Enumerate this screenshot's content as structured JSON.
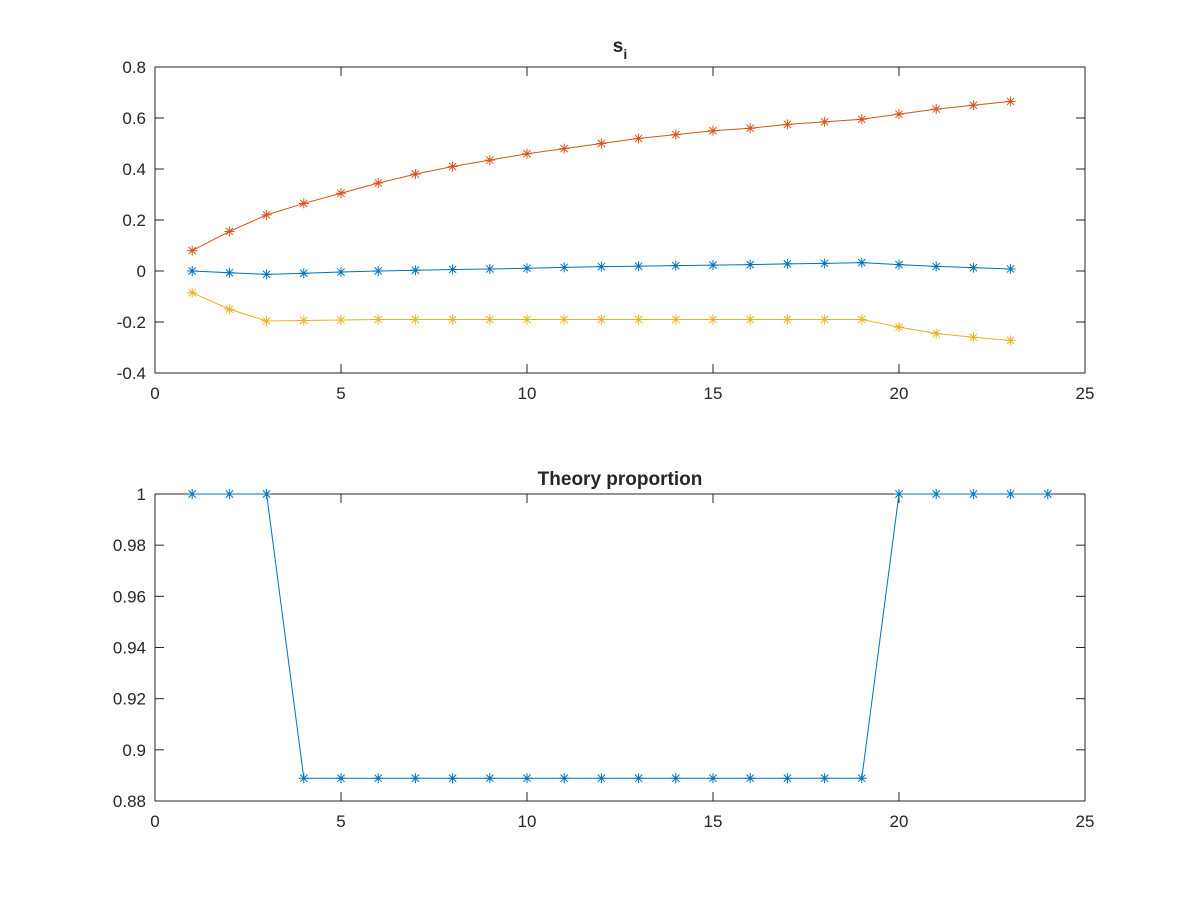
{
  "chart_data": [
    {
      "type": "line",
      "title": "s",
      "title_subscript": "i",
      "xlabel": "",
      "ylabel": "",
      "xlim": [
        0,
        25
      ],
      "ylim": [
        -0.4,
        0.8
      ],
      "xticks": [
        0,
        5,
        10,
        15,
        20,
        25
      ],
      "xtick_labels": [
        "0",
        "5",
        "10",
        "15",
        "20",
        "25"
      ],
      "yticks": [
        -0.4,
        -0.2,
        0,
        0.2,
        0.4,
        0.6,
        0.8
      ],
      "ytick_labels": [
        "-0.4",
        "-0.2",
        "0",
        "0.2",
        "0.4",
        "0.6",
        "0.8"
      ],
      "grid": false,
      "marker": "*",
      "x": [
        1,
        2,
        3,
        4,
        5,
        6,
        7,
        8,
        9,
        10,
        11,
        12,
        13,
        14,
        15,
        16,
        17,
        18,
        19,
        20,
        21,
        22,
        23
      ],
      "series": [
        {
          "color": "#0072BD",
          "values": [
            0.0,
            -0.007,
            -0.013,
            -0.009,
            -0.004,
            0.0,
            0.003,
            0.006,
            0.008,
            0.011,
            0.014,
            0.017,
            0.019,
            0.021,
            0.023,
            0.025,
            0.028,
            0.03,
            0.033,
            0.025,
            0.018,
            0.013,
            0.008
          ]
        },
        {
          "color": "#D95319",
          "values": [
            0.08,
            0.155,
            0.22,
            0.265,
            0.305,
            0.345,
            0.38,
            0.41,
            0.435,
            0.46,
            0.48,
            0.5,
            0.52,
            0.535,
            0.55,
            0.56,
            0.575,
            0.585,
            0.595,
            0.615,
            0.635,
            0.65,
            0.665
          ]
        },
        {
          "color": "#EDB120",
          "values": [
            -0.085,
            -0.15,
            -0.196,
            -0.194,
            -0.192,
            -0.19,
            -0.19,
            -0.19,
            -0.19,
            -0.19,
            -0.19,
            -0.19,
            -0.19,
            -0.19,
            -0.19,
            -0.19,
            -0.19,
            -0.19,
            -0.19,
            -0.22,
            -0.245,
            -0.26,
            -0.272
          ]
        }
      ]
    },
    {
      "type": "line",
      "title": "Theory proportion",
      "xlabel": "",
      "ylabel": "",
      "xlim": [
        0,
        25
      ],
      "ylim": [
        0.88,
        1.0
      ],
      "xticks": [
        0,
        5,
        10,
        15,
        20,
        25
      ],
      "xtick_labels": [
        "0",
        "5",
        "10",
        "15",
        "20",
        "25"
      ],
      "yticks": [
        0.88,
        0.9,
        0.92,
        0.94,
        0.96,
        0.98,
        1.0
      ],
      "ytick_labels": [
        "0.88",
        "0.9",
        "0.92",
        "0.94",
        "0.96",
        "0.98",
        "1"
      ],
      "grid": false,
      "marker": "*",
      "x": [
        1,
        2,
        3,
        4,
        5,
        6,
        7,
        8,
        9,
        10,
        11,
        12,
        13,
        14,
        15,
        16,
        17,
        18,
        19,
        20,
        21,
        22,
        23,
        24
      ],
      "series": [
        {
          "color": "#0072BD",
          "values": [
            1,
            1,
            1,
            0.8889,
            0.8889,
            0.8889,
            0.8889,
            0.8889,
            0.8889,
            0.8889,
            0.8889,
            0.8889,
            0.8889,
            0.8889,
            0.8889,
            0.8889,
            0.8889,
            0.8889,
            0.8889,
            1,
            1,
            1,
            1,
            1
          ]
        }
      ]
    }
  ]
}
